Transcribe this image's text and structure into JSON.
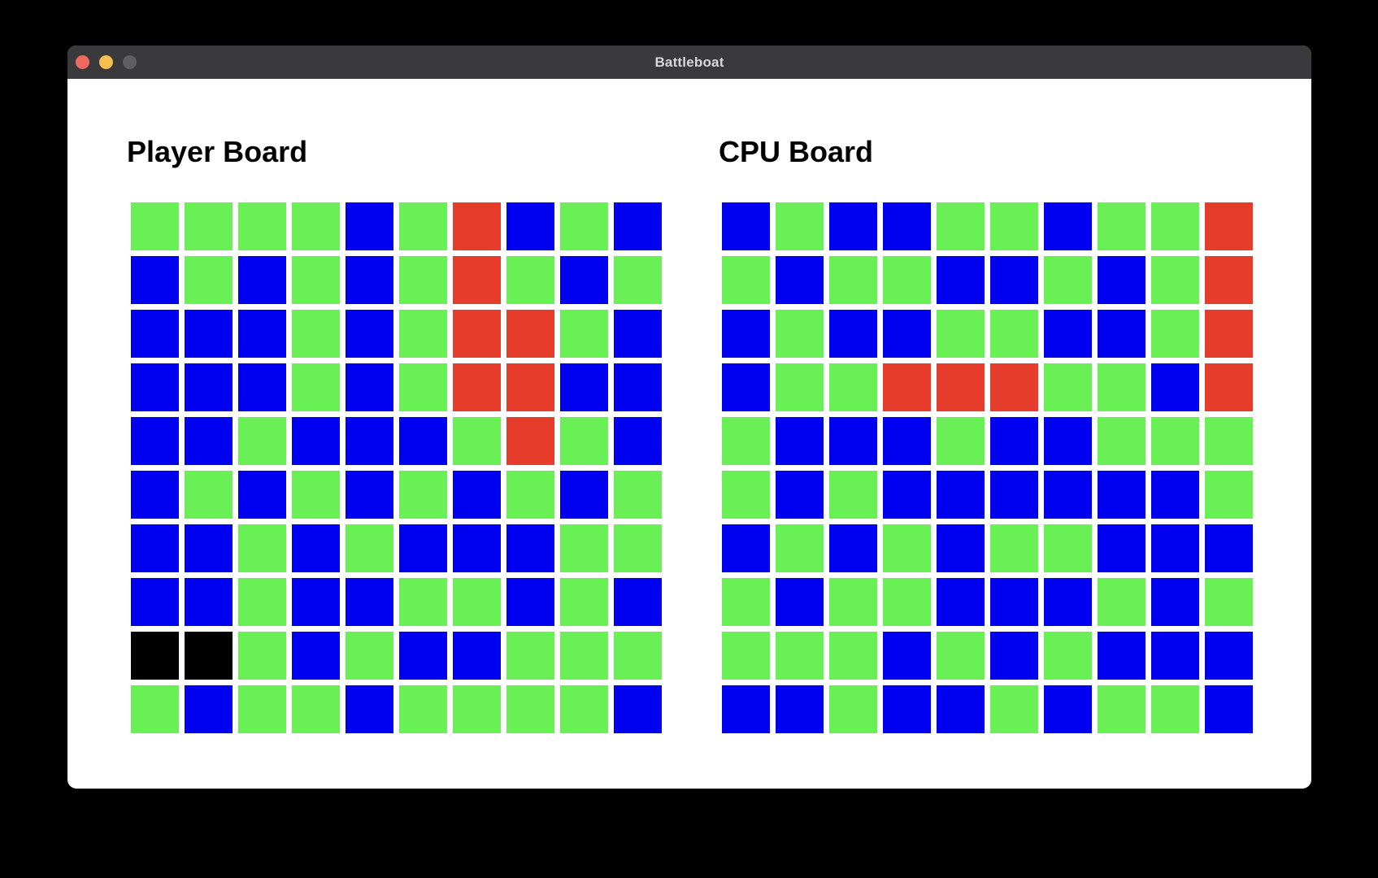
{
  "window": {
    "title": "Battleboat",
    "titlebar_color": "#3a3a3c",
    "traffic_lights": [
      "close",
      "minimize",
      "zoom"
    ]
  },
  "boards": {
    "player": {
      "title": "Player Board",
      "rows": [
        "GGGGBGRBGB",
        "BGBGBGRGBG",
        "BBBGBGRRGB",
        "BBBGBGRRBB",
        "BBGBBBGRGB",
        "BGBGBGBGBG",
        "BBGBGBBBGG",
        "BBGBBGGBGB",
        "KKGBGBBGGG",
        "GBGGBGGGGB"
      ]
    },
    "cpu": {
      "title": "CPU Board",
      "rows": [
        "BGBBGGBGGR",
        "GBGGBBGBGR",
        "BGBBGGBBGR",
        "BGGRRRGGBR",
        "GBBBGBBGGG",
        "GBGBBBBBBG",
        "BGBGBGGBBB",
        "GBGGBBBGBG",
        "GGGBGBGBBB",
        "BBGBBGBGGB"
      ]
    }
  },
  "cell_colors": {
    "G": "#69f055",
    "B": "#0000f0",
    "R": "#e63c2c",
    "K": "#000000"
  },
  "cell_legend": {
    "G": "green-cell",
    "B": "blue-cell",
    "R": "red-hit-cell",
    "K": "black-sunk-cell"
  }
}
